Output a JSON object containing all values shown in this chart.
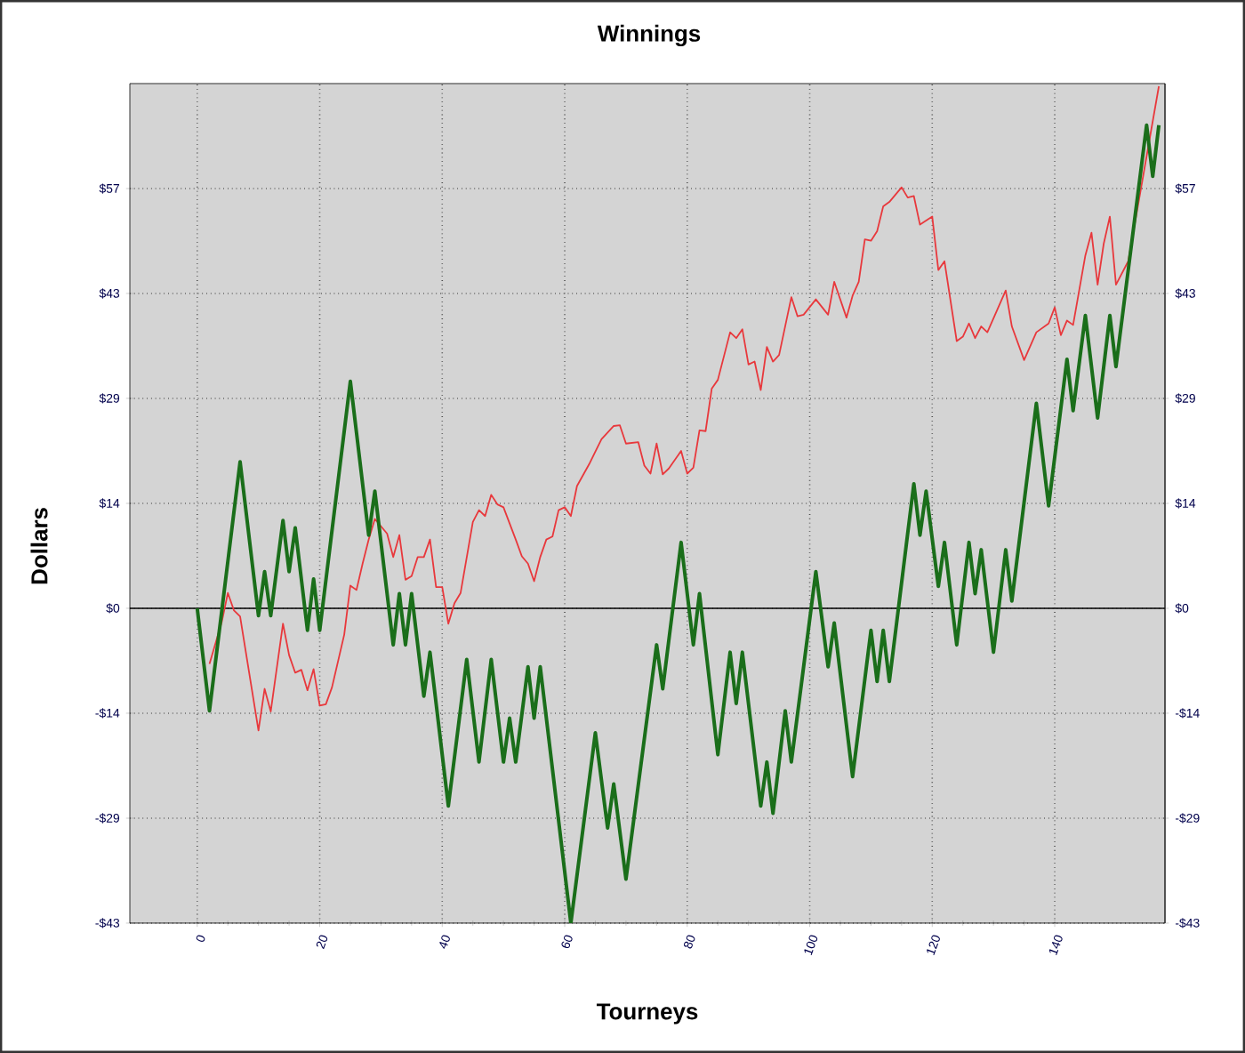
{
  "chart_data": {
    "type": "line",
    "title": "Winnings",
    "xlabel": "Tourneys",
    "ylabel": "Dollars",
    "xlim": [
      -11,
      158
    ],
    "xticks": [
      0,
      20,
      40,
      60,
      80,
      100,
      120,
      140
    ],
    "ylim": [
      -43,
      71.67
    ],
    "yticks": [
      {
        "value": -43,
        "label": "-$43"
      },
      {
        "value": -28.67,
        "label": "-$29"
      },
      {
        "value": -14.33,
        "label": "-$14"
      },
      {
        "value": 0,
        "label": "$0"
      },
      {
        "value": 14.33,
        "label": "$14"
      },
      {
        "value": 28.67,
        "label": "$29"
      },
      {
        "value": 43,
        "label": "$43"
      },
      {
        "value": 57.33,
        "label": "$57"
      }
    ],
    "y2lim": [
      -43,
      71.67
    ],
    "y2ticks": [
      {
        "value": -43,
        "label": "-$43"
      },
      {
        "value": -28.67,
        "label": "-$29"
      },
      {
        "value": -14.33,
        "label": "-$14"
      },
      {
        "value": 0,
        "label": "$0"
      },
      {
        "value": 14.33,
        "label": "$14"
      },
      {
        "value": 28.67,
        "label": "$29"
      },
      {
        "value": 43,
        "label": "$43"
      },
      {
        "value": 57.33,
        "label": "$57"
      }
    ],
    "grid": true,
    "legend": false,
    "marker": "none",
    "line_style": "solid",
    "ref_lines": [
      {
        "axis": "y",
        "value": 0,
        "color": "#000000"
      }
    ],
    "series": [
      {
        "color": "#e8383c",
        "x": [
          2,
          4,
          5,
          6,
          7,
          10,
          11,
          12,
          14,
          15,
          16,
          17,
          18,
          19,
          20,
          21,
          22,
          24,
          25,
          26,
          27,
          28,
          29,
          31,
          32,
          33,
          34,
          35,
          36,
          37,
          38,
          39,
          40,
          41,
          42,
          43,
          45,
          46,
          47,
          48,
          49,
          50,
          52,
          53,
          54,
          55,
          56,
          57,
          58,
          59,
          60,
          61,
          62,
          64,
          66,
          68,
          69,
          70,
          72,
          73,
          74,
          75,
          76,
          77,
          79,
          80,
          81,
          82,
          83,
          84,
          85,
          87,
          88,
          89,
          90,
          91,
          92,
          93,
          94,
          95,
          97,
          98,
          99,
          101,
          103,
          104,
          106,
          107,
          108,
          109,
          110,
          111,
          112,
          113,
          115,
          116,
          117,
          118,
          120,
          121,
          122,
          124,
          125,
          126,
          127,
          128,
          129,
          132,
          133,
          135,
          137,
          139,
          140,
          141,
          142,
          143,
          145,
          146,
          147,
          148,
          149,
          150,
          152,
          157
        ],
        "values": [
          -7.6,
          -1.9,
          2.1,
          -0.3,
          -1.1,
          -16.7,
          -11,
          -14.1,
          -2.1,
          -6.4,
          -8.8,
          -8.4,
          -11.2,
          -8.3,
          -13.3,
          -13.1,
          -10.8,
          -3.6,
          3.1,
          2.5,
          6.1,
          9.4,
          12.2,
          10.2,
          7,
          10,
          3.9,
          4.4,
          7,
          7,
          9.4,
          2.9,
          2.9,
          -2.1,
          0.7,
          2.1,
          11.8,
          13.4,
          12.6,
          15.5,
          14.2,
          13.8,
          9.4,
          7.1,
          6.1,
          3.7,
          7,
          9.4,
          9.8,
          13.4,
          13.8,
          12.6,
          16.7,
          19.7,
          23.1,
          24.9,
          25,
          22.5,
          22.7,
          19.5,
          18.4,
          22.5,
          18.3,
          19.1,
          21.5,
          18.4,
          19.2,
          24.3,
          24.2,
          30,
          31.2,
          37.7,
          36.9,
          38.1,
          33.3,
          33.7,
          29.8,
          35.7,
          33.7,
          34.6,
          42.5,
          39.9,
          40.1,
          42.2,
          40.1,
          44.6,
          39.7,
          42.7,
          44.6,
          50.4,
          50.2,
          51.5,
          54.9,
          55.5,
          57.5,
          56.1,
          56.3,
          52.4,
          53.5,
          46.2,
          47.4,
          36.5,
          37.1,
          38.9,
          36.9,
          38.5,
          37.7,
          43.4,
          38.5,
          33.9,
          37.7,
          38.9,
          41.1,
          37.3,
          39.3,
          38.7,
          48.2,
          51.3,
          44.2,
          49.8,
          53.5,
          44.2,
          47.4,
          71.3
        ]
      },
      {
        "color": "#1a6e1a",
        "x": [
          0,
          2,
          7,
          10,
          11,
          12,
          14,
          15,
          16,
          18,
          19,
          20,
          25,
          28,
          29,
          32,
          33,
          34,
          35,
          37,
          38,
          41,
          44,
          46,
          48,
          50,
          51,
          52,
          54,
          55,
          56,
          61,
          65,
          67,
          68,
          70,
          75,
          76,
          79,
          81,
          82,
          85,
          87,
          88,
          89,
          92,
          93,
          94,
          96,
          97,
          101,
          103,
          104,
          107,
          110,
          111,
          112,
          113,
          117,
          118,
          119,
          121,
          122,
          124,
          126,
          127,
          128,
          130,
          132,
          133,
          137,
          139,
          142,
          143,
          145,
          147,
          149,
          150,
          155,
          156,
          157
        ],
        "values": [
          0,
          -14,
          20,
          -1,
          5,
          -1,
          12,
          5,
          11,
          -3,
          4,
          -3,
          31,
          10,
          16,
          -5,
          2,
          -5,
          2,
          -12,
          -6,
          -27,
          -7,
          -21,
          -7,
          -21,
          -15,
          -21,
          -8,
          -15,
          -8,
          -43,
          -17,
          -30,
          -24,
          -37,
          -5,
          -11,
          9,
          -5,
          2,
          -20,
          -6,
          -13,
          -6,
          -27,
          -21,
          -28,
          -14,
          -21,
          5,
          -8,
          -2,
          -23,
          -3,
          -10,
          -3,
          -10,
          17,
          10,
          16,
          3,
          9,
          -5,
          9,
          2,
          8,
          -6,
          8,
          1,
          28,
          14,
          34,
          27,
          40,
          26,
          40,
          33,
          66,
          59,
          66
        ]
      }
    ]
  }
}
